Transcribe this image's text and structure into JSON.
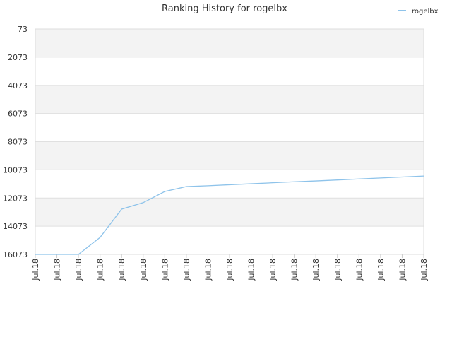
{
  "chart_data": {
    "type": "line",
    "title": "Ranking History for rogelbx",
    "categories": [
      "Jul.18",
      "Jul.18",
      "Jul.18",
      "Jul.18",
      "Jul.18",
      "Jul.18",
      "Jul.18",
      "Jul.18",
      "Jul.18",
      "Jul.18",
      "Jul.18",
      "Jul.18",
      "Jul.18",
      "Jul.18",
      "Jul.18",
      "Jul.18",
      "Jul.18",
      "Jul.18",
      "Jul.18"
    ],
    "series": [
      {
        "name": "rogelbx",
        "color": "#8ec3ea",
        "values": [
          16073,
          16073,
          16073,
          14870,
          12860,
          12400,
          11610,
          11260,
          11200,
          11130,
          11060,
          10990,
          10920,
          10860,
          10790,
          10720,
          10650,
          10580,
          10510
        ]
      }
    ],
    "ylim": [
      73,
      16073
    ],
    "y_reversed": true,
    "yticks": [
      73,
      2073,
      4073,
      6073,
      8073,
      10073,
      12073,
      14073,
      16073
    ],
    "grid": true,
    "legend": "top-right"
  }
}
